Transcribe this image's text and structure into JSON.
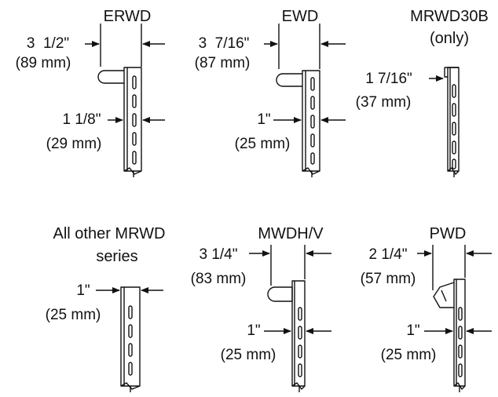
{
  "panels": [
    {
      "title": "ERWD",
      "dims": [
        {
          "inch": "3  1/2\"",
          "mm": "(89 mm)"
        },
        {
          "inch": "1 1/8\"",
          "mm": "(29 mm)"
        }
      ]
    },
    {
      "title": "EWD",
      "dims": [
        {
          "inch": "3  7/16\"",
          "mm": "(87 mm)"
        },
        {
          "inch": "1\"",
          "mm": "(25 mm)"
        }
      ]
    },
    {
      "title": "MRWD30B",
      "subtitle": "(only)",
      "dims": [
        {
          "inch": "1 7/16\"",
          "mm": "(37 mm)"
        }
      ]
    },
    {
      "title": "All other MRWD",
      "subtitle": "series",
      "dims": [
        {
          "inch": "1\"",
          "mm": "(25 mm)"
        }
      ]
    },
    {
      "title": "MWDH/V",
      "dims": [
        {
          "inch": "3 1/4\"",
          "mm": "(83 mm)"
        },
        {
          "inch": "1\"",
          "mm": "(25 mm)"
        }
      ]
    },
    {
      "title": "PWD",
      "dims": [
        {
          "inch": "2 1/4\"",
          "mm": "(57 mm)"
        },
        {
          "inch": "1\"",
          "mm": "(25 mm)"
        }
      ]
    }
  ]
}
